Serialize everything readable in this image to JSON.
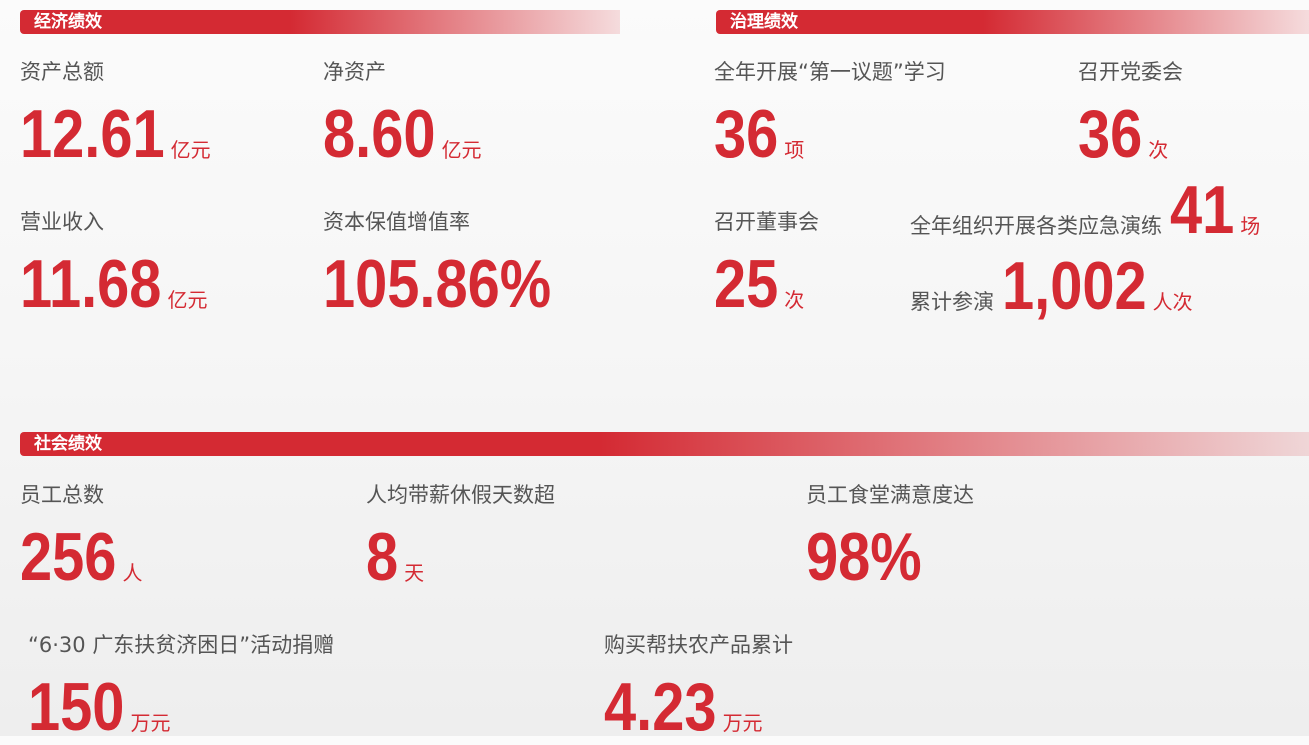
{
  "sections": [
    {
      "title": "经济绩效",
      "items": [
        {
          "label": "资产总额",
          "value": "12.61",
          "unit": "亿元"
        },
        {
          "label": "净资产",
          "value": "8.60",
          "unit": "亿元"
        },
        {
          "label": "营业收入",
          "value": "11.68",
          "unit": "亿元"
        },
        {
          "label": "资本保值增值率",
          "value": "105.86%"
        }
      ]
    },
    {
      "title": "治理绩效",
      "items": [
        {
          "label": "全年开展“第一议题”学习",
          "value": "36",
          "unit": "项"
        },
        {
          "label": "召开党委会",
          "value": "36",
          "unit": "次"
        },
        {
          "label": "召开董事会",
          "value": "25",
          "unit": "次"
        },
        {
          "label": "全年组织开展各类应急演练",
          "value": "41",
          "unit": "场"
        },
        {
          "label": "累计参演",
          "value": "1,002",
          "unit": "人次"
        }
      ]
    },
    {
      "title": "社会绩效",
      "items": [
        {
          "label": "员工总数",
          "value": "256",
          "unit": "人"
        },
        {
          "label": "人均带薪休假天数超",
          "value": "8",
          "unit": "天"
        },
        {
          "label": "员工食堂满意度达",
          "value": "98%"
        },
        {
          "label": "“6·30 广东扶贫济困日”活动捐赠",
          "value": "150",
          "unit": "万元"
        },
        {
          "label": "购买帮扶农产品累计",
          "value": "4.23",
          "unit": "万元"
        }
      ]
    }
  ]
}
